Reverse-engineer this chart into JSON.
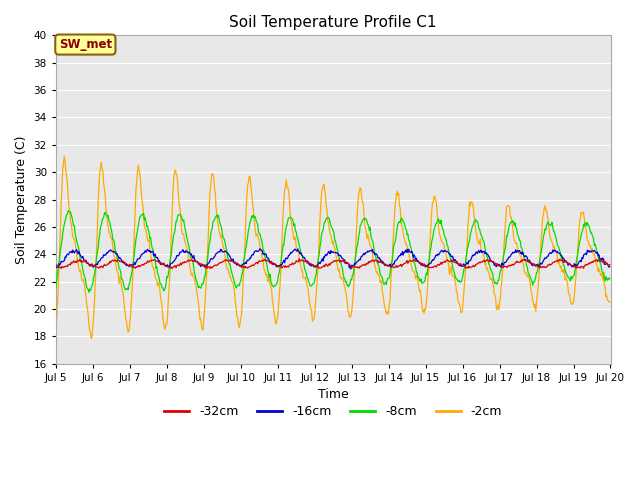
{
  "title": "Soil Temperature Profile C1",
  "xlabel": "Time",
  "ylabel": "Soil Temperature (C)",
  "ylim": [
    16,
    40
  ],
  "yticks": [
    16,
    18,
    20,
    22,
    24,
    26,
    28,
    30,
    32,
    34,
    36,
    38,
    40
  ],
  "legend_labels": [
    "-32cm",
    "-16cm",
    "-8cm",
    "-2cm"
  ],
  "series_colors": [
    "#dd0000",
    "#0000dd",
    "#00dd00",
    "#ffaa00"
  ],
  "annotation_text": "SW_met",
  "annotation_color": "#8b0000",
  "annotation_bg": "#ffff99",
  "annotation_border": "#8b6010",
  "background_color": "#e8e8e8",
  "x_start_day": 5,
  "x_end_day": 20,
  "x_tick_days": [
    5,
    6,
    7,
    8,
    9,
    10,
    11,
    12,
    13,
    14,
    15,
    16,
    17,
    18,
    19,
    20
  ],
  "x_tick_labels": [
    "Jul 5",
    "Jul 6",
    "Jul 7",
    "Jul 8",
    "Jul 9",
    "Jul 10",
    "Jul 11",
    "Jul 12",
    "Jul 13",
    "Jul 14",
    "Jul 15",
    "Jul 16",
    "Jul 17",
    "Jul 18",
    "Jul 19",
    "Jul 20"
  ]
}
